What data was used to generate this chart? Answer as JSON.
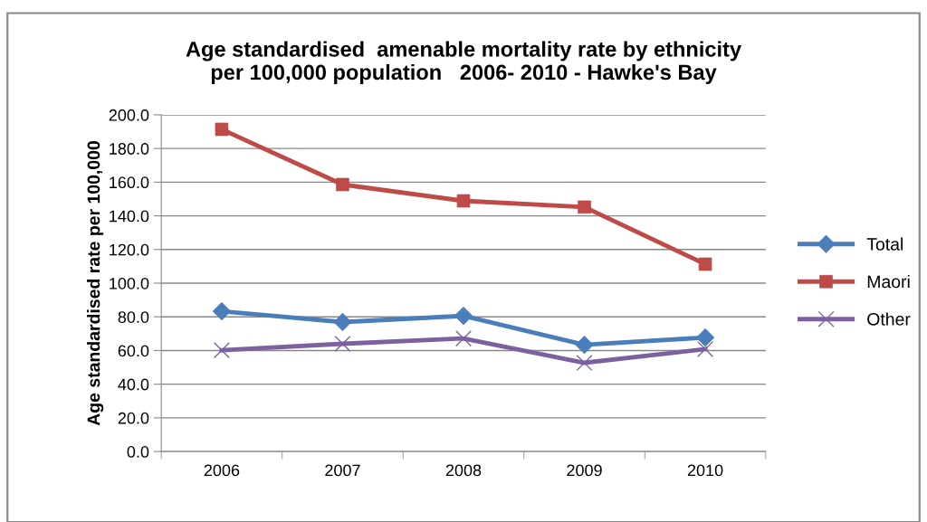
{
  "chart_data": {
    "type": "line",
    "title": "Age standardised  amenable mortality rate by ethnicity\nper 100,000 population   2006- 2010 - Hawke's Bay",
    "ylabel": "Age standardised rate per 100,000",
    "categories": [
      "2006",
      "2007",
      "2008",
      "2009",
      "2010"
    ],
    "series": [
      {
        "name": "Total",
        "color": "#4a7ebb",
        "marker": "diamond",
        "values": [
          83.3,
          76.9,
          80.6,
          63.4,
          67.7
        ]
      },
      {
        "name": "Maori",
        "color": "#be4b48",
        "marker": "square",
        "values": [
          191.4,
          158.6,
          148.9,
          145.2,
          111.3
        ]
      },
      {
        "name": "Other",
        "color": "#7d60a0",
        "marker": "cross",
        "values": [
          60.2,
          64.0,
          67.2,
          52.7,
          60.8
        ]
      }
    ],
    "ylim": [
      0,
      200
    ],
    "yticks": [
      {
        "value": 0,
        "label": "0.0"
      },
      {
        "value": 20,
        "label": "20.0"
      },
      {
        "value": 40,
        "label": "40.0"
      },
      {
        "value": 60,
        "label": "60.0"
      },
      {
        "value": 80,
        "label": "80.0"
      },
      {
        "value": 100,
        "label": "100.0"
      },
      {
        "value": 120,
        "label": "120.0"
      },
      {
        "value": 140,
        "label": "140.0"
      },
      {
        "value": 160,
        "label": "160.0"
      },
      {
        "value": 180,
        "label": "180.0"
      },
      {
        "value": 200,
        "label": "200.0"
      }
    ],
    "grid": "y",
    "legend": "right",
    "line_style": "solid"
  }
}
